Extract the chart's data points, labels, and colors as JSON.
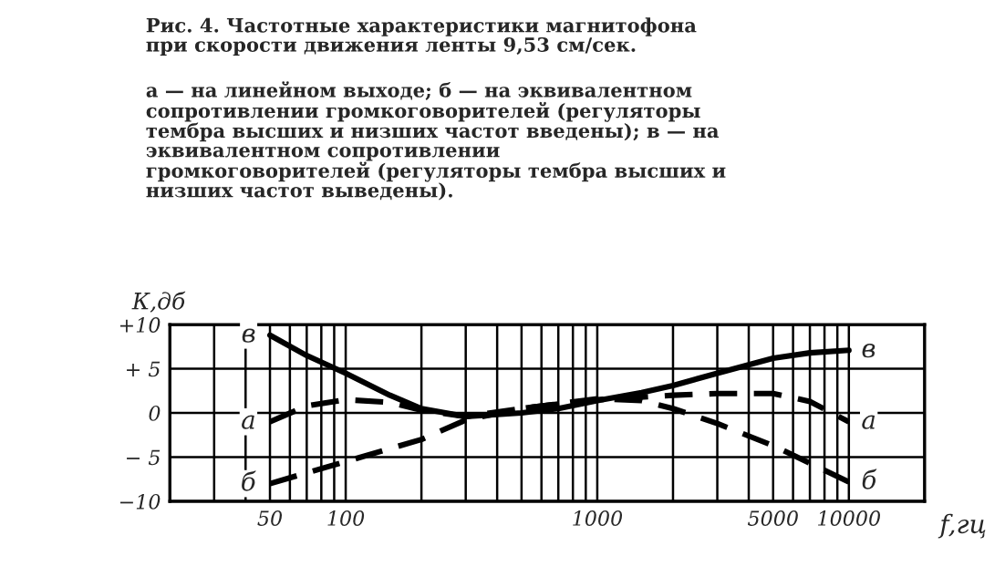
{
  "chart_data": {
    "type": "line",
    "title": "Рис. 4. Частотные характеристики магнитофона при скорости движения ленты 9,53 см/сек.",
    "annotations": [
      "а — на линейном выходе; б — на эквивалентном сопротивлении громкоговорителей (регуляторы тембра высших и низших частот введены); в — на эквивалентном сопротивлении громкоговорителей (регуляторы тембра высших и низших частот выведены)."
    ],
    "xlabel": "f,гц",
    "ylabel": "К,дб",
    "log": "x",
    "xlim": [
      20,
      20000
    ],
    "ylim": [
      -10,
      10
    ],
    "xticks": [
      {
        "value": 20,
        "label": null
      },
      {
        "value": 30,
        "label": null
      },
      {
        "value": 40,
        "label": null
      },
      50,
      {
        "value": 60,
        "label": null
      },
      {
        "value": 70,
        "label": null
      },
      {
        "value": 80,
        "label": null
      },
      {
        "value": 90,
        "label": null
      },
      100,
      {
        "value": 200,
        "label": null
      },
      {
        "value": 300,
        "label": null
      },
      {
        "value": 400,
        "label": null
      },
      {
        "value": 500,
        "label": null
      },
      {
        "value": 600,
        "label": null
      },
      {
        "value": 700,
        "label": null
      },
      {
        "value": 800,
        "label": null
      },
      {
        "value": 900,
        "label": null
      },
      1000,
      {
        "value": 2000,
        "label": null
      },
      {
        "value": 3000,
        "label": null
      },
      {
        "value": 4000,
        "label": null
      },
      5000,
      {
        "value": 6000,
        "label": null
      },
      {
        "value": 7000,
        "label": null
      },
      {
        "value": 8000,
        "label": null
      },
      {
        "value": 9000,
        "label": null
      },
      10000,
      {
        "value": 20000,
        "label": null
      }
    ],
    "yticks": [
      {
        "value": 10,
        "label": "+10"
      },
      {
        "value": 5,
        "label": "+ 5"
      },
      0,
      {
        "value": -5,
        "label": "− 5"
      },
      {
        "value": -10,
        "label": "−10"
      }
    ],
    "grid": true,
    "marker": "none",
    "series": [
      {
        "name": "в",
        "color": "#000000",
        "line_style": "solid",
        "x": [
          50,
          70,
          100,
          150,
          200,
          300,
          500,
          700,
          1000,
          1500,
          2000,
          3000,
          5000,
          7000,
          10000
        ],
        "values": [
          8.8,
          6.5,
          4.5,
          2,
          0.5,
          -0.4,
          0,
          0.5,
          1.4,
          2.3,
          3.1,
          4.5,
          6.2,
          6.8,
          7.1
        ]
      },
      {
        "name": "а",
        "color": "#000000",
        "line_style": "dashed",
        "x": [
          50,
          70,
          100,
          150,
          200,
          300,
          500,
          700,
          1000,
          2000,
          3000,
          5000,
          7000,
          10000
        ],
        "values": [
          -1,
          0.8,
          1.5,
          1.2,
          0.3,
          -0.4,
          0.5,
          1,
          1.5,
          2,
          2.2,
          2.2,
          1.3,
          -1
        ]
      },
      {
        "name": "б",
        "color": "#000000",
        "line_style": "dashed",
        "x": [
          50,
          100,
          200,
          300,
          500,
          1000,
          1500,
          2000,
          3000,
          5000,
          10000
        ],
        "values": [
          -8,
          -5.5,
          -3,
          -0.8,
          0.5,
          1.6,
          1.4,
          0.5,
          -1.2,
          -3.7,
          -7.8
        ]
      }
    ]
  }
}
